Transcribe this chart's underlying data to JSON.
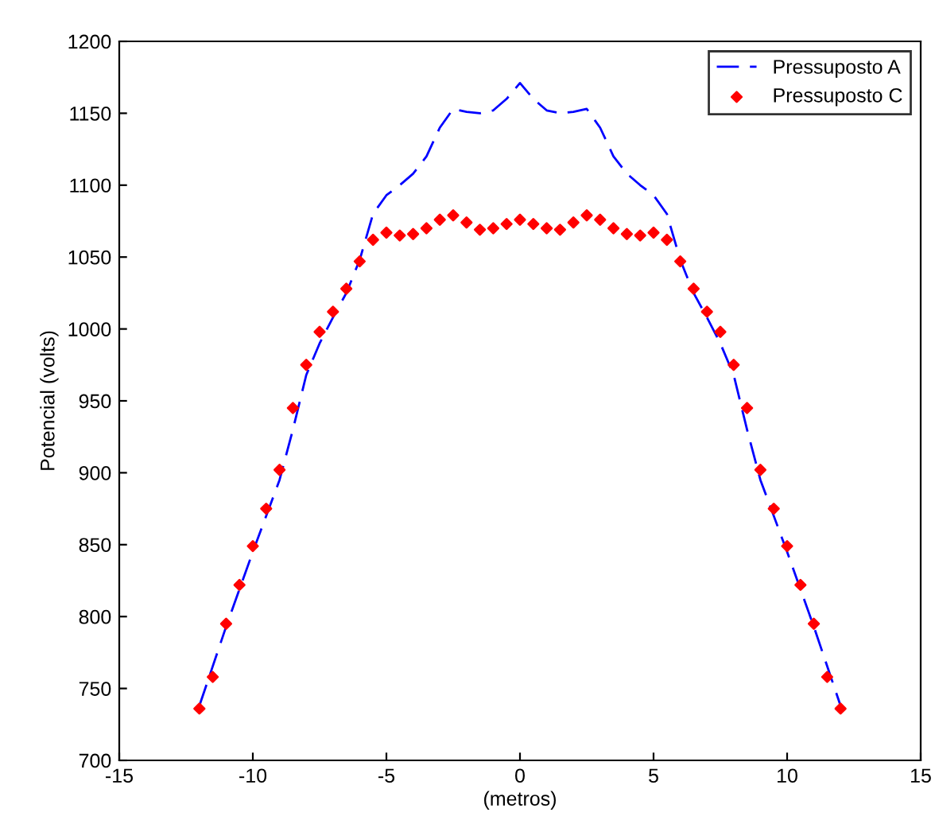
{
  "chart_data": {
    "type": "line",
    "xlabel": "(metros)",
    "ylabel": "Potencial (volts)",
    "xlim": [
      -15,
      15
    ],
    "xticks": [
      -15,
      -10,
      -5,
      0,
      5,
      10,
      15
    ],
    "ylim": [
      700,
      1200
    ],
    "yticks": [
      700,
      750,
      800,
      850,
      900,
      950,
      1000,
      1050,
      1100,
      1150,
      1200
    ],
    "grid": false,
    "legend": "top right",
    "series": [
      {
        "name": "Pressuposto A",
        "line_style": "dashed",
        "marker": "none",
        "color": "#0000ff",
        "x": [
          -12,
          -11,
          -10,
          -9,
          -8.5,
          -8,
          -7.5,
          -7,
          -6.5,
          -6,
          -5.5,
          -5,
          -4.5,
          -4,
          -3.5,
          -3,
          -2.5,
          -2,
          -1.5,
          -1,
          -0.5,
          0,
          0.5,
          1,
          1.5,
          2,
          2.5,
          3,
          3.5,
          4,
          4.5,
          5,
          5.5,
          6,
          6.5,
          7,
          7.5,
          8,
          8.5,
          9,
          10,
          11,
          12
        ],
        "values": [
          738,
          793,
          845,
          895,
          930,
          968,
          990,
          1008,
          1025,
          1048,
          1080,
          1093,
          1100,
          1108,
          1120,
          1140,
          1153,
          1151,
          1150,
          1152,
          1160,
          1171,
          1160,
          1152,
          1150,
          1151,
          1153,
          1140,
          1120,
          1108,
          1100,
          1093,
          1080,
          1048,
          1025,
          1008,
          990,
          968,
          930,
          895,
          845,
          793,
          738
        ]
      },
      {
        "name": "Pressuposto C",
        "type": "scatter",
        "marker": "diamond",
        "color": "#ff0000",
        "x": [
          -12,
          -11.5,
          -11,
          -10.5,
          -10,
          -9.5,
          -9,
          -8.5,
          -8,
          -7.5,
          -7,
          -6.5,
          -6,
          -5.5,
          -5,
          -4.5,
          -4,
          -3.5,
          -3,
          -2.5,
          -2,
          -1.5,
          -1,
          -0.5,
          0,
          0.5,
          1,
          1.5,
          2,
          2.5,
          3,
          3.5,
          4,
          4.5,
          5,
          5.5,
          6,
          6.5,
          7,
          7.5,
          8,
          8.5,
          9,
          9.5,
          10,
          10.5,
          11,
          11.5,
          12
        ],
        "values": [
          736,
          758,
          795,
          822,
          849,
          875,
          902,
          945,
          975,
          998,
          1012,
          1028,
          1047,
          1062,
          1067,
          1065,
          1066,
          1070,
          1076,
          1079,
          1074,
          1069,
          1070,
          1073,
          1076,
          1073,
          1070,
          1069,
          1074,
          1079,
          1076,
          1070,
          1066,
          1065,
          1067,
          1062,
          1047,
          1028,
          1012,
          998,
          975,
          945,
          902,
          875,
          849,
          822,
          795,
          758,
          736
        ]
      }
    ]
  }
}
